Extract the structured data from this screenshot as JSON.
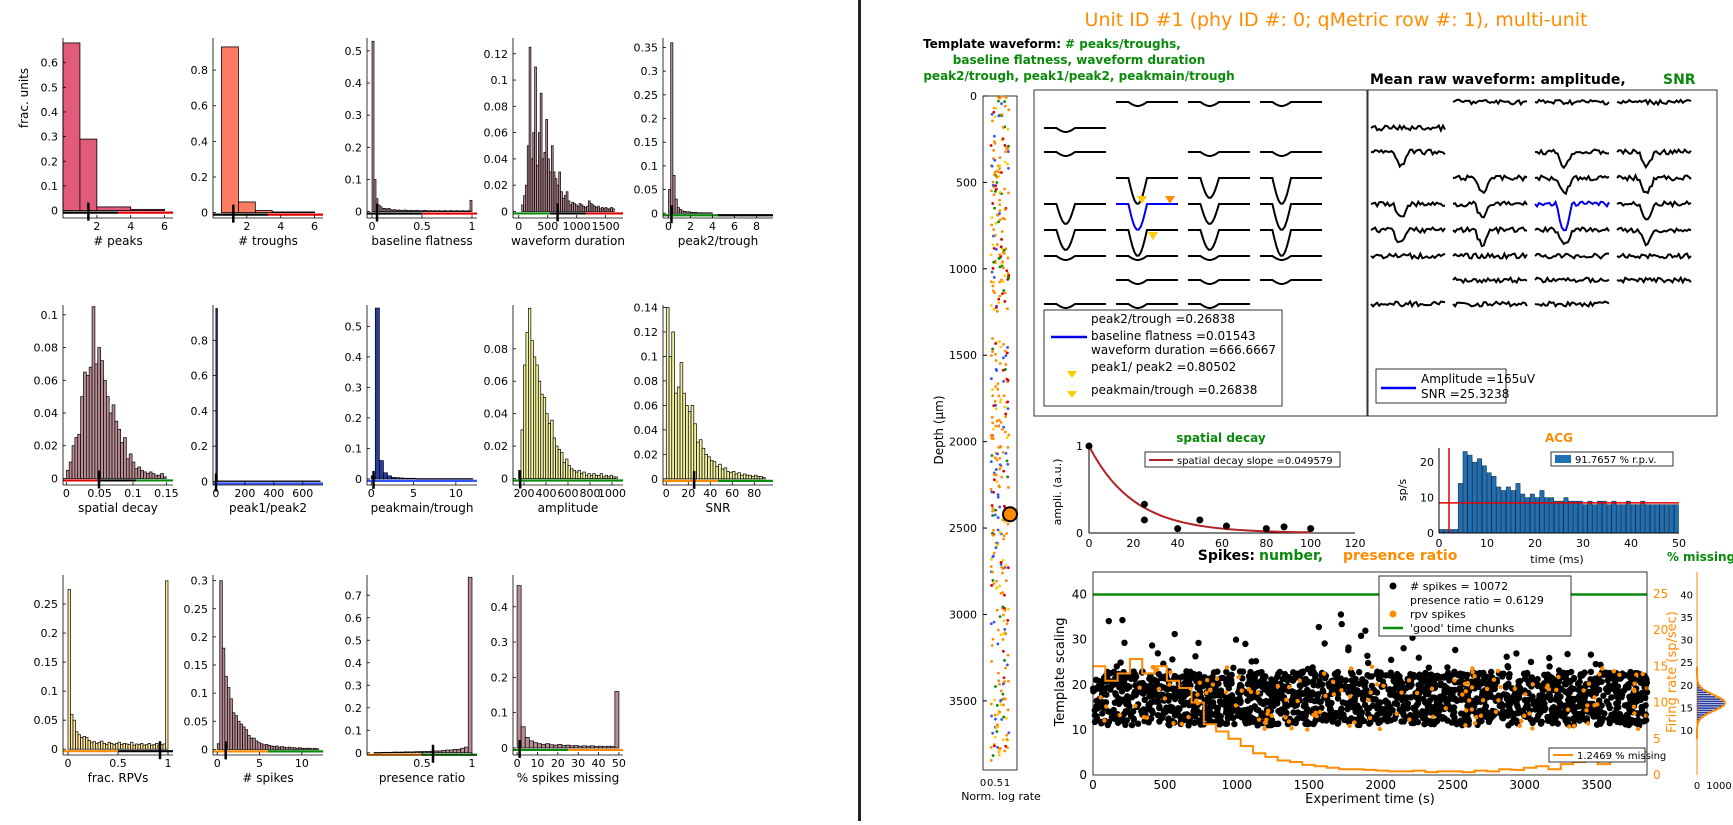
{
  "colors": {
    "orange": "#ff8c00",
    "green": "#0a8a0a",
    "red": "#e00000",
    "blue": "#0000ff",
    "pink": "#e25b7a",
    "salmon": "#ff7b64",
    "mauve": "#b98d93",
    "navy": "#283c9e",
    "yellow": "#f4f4a0",
    "paleyellow": "#ffe7a0",
    "acgblue": "#1f6fb4"
  },
  "histograms": [
    {
      "id": "peaks",
      "xlabel": "# peaks",
      "ylabel": "frac. units",
      "color": "pink",
      "xlim": [
        0,
        6.5
      ],
      "ylim": [
        -0.03,
        0.7
      ],
      "xticks": [
        2,
        4,
        6
      ],
      "yticks": [
        0,
        0.1,
        0.2,
        0.3,
        0.4,
        0.5,
        0.6
      ],
      "bins": [
        [
          0,
          1,
          0.68
        ],
        [
          1,
          2,
          0.29
        ],
        [
          2,
          4,
          0.015
        ],
        [
          4,
          6,
          0.005
        ]
      ],
      "thr": 1.5,
      "line_colors": [
        "black",
        "red"
      ]
    },
    {
      "id": "troughs",
      "xlabel": "# troughs",
      "color": "salmon",
      "xlim": [
        0,
        6.5
      ],
      "ylim": [
        -0.03,
        0.98
      ],
      "xticks": [
        2,
        4,
        6
      ],
      "yticks": [
        0,
        0.2,
        0.4,
        0.6,
        0.8
      ],
      "bins": [
        [
          0.5,
          1.5,
          0.93
        ],
        [
          1.5,
          2.5,
          0.06
        ],
        [
          2.5,
          3.5,
          0.012
        ],
        [
          3.5,
          6,
          0.004
        ]
      ],
      "thr": 1.2,
      "line_colors": [
        "black",
        "red"
      ]
    },
    {
      "id": "baseline",
      "xlabel": "baseline flatness",
      "color": "mauve",
      "xlim": [
        -0.05,
        1.05
      ],
      "ylim": [
        -0.02,
        0.54
      ],
      "xticks": [
        0,
        0.5,
        1
      ],
      "yticks": [
        0,
        0.1,
        0.2,
        0.3,
        0.4,
        0.5
      ],
      "series": [
        0.53,
        0.1,
        0.04,
        0.02,
        0.015,
        0.01,
        0.01,
        0.008,
        0.01,
        0.006,
        0.005,
        0.006,
        0.004,
        0.005,
        0.004,
        0.003,
        0.005,
        0.004,
        0.003,
        0.004,
        0.003,
        0.003,
        0.004,
        0.003,
        0.002,
        0.003,
        0.004,
        0.003,
        0.002,
        0.003,
        0.002,
        0.003,
        0.002,
        0.003,
        0.002,
        0.002,
        0.003,
        0.002,
        0.002,
        0.003,
        0.002,
        0.002,
        0.003,
        0.002,
        0.002,
        0.003,
        0.002,
        0.002,
        0.003,
        0.035
      ],
      "sx": [
        0,
        1
      ],
      "thr": 0.05,
      "line_colors": [
        "black",
        "red"
      ]
    },
    {
      "id": "duration",
      "xlabel": "waveform duration",
      "color": "mauve",
      "xlim": [
        -100,
        1800
      ],
      "ylim": [
        -0.005,
        0.132
      ],
      "xticks": [
        0,
        500,
        1000,
        1500
      ],
      "yticks": [
        0,
        0.02,
        0.04,
        0.06,
        0.08,
        0.1,
        0.12
      ],
      "series": [
        0.005,
        0.012,
        0.02,
        0.05,
        0.125,
        0.04,
        0.06,
        0.11,
        0.035,
        0.06,
        0.09,
        0.04,
        0.045,
        0.07,
        0.04,
        0.03,
        0.05,
        0.03,
        0.025,
        0.02,
        0.03,
        0.015,
        0.01,
        0.012,
        0.015,
        0.008,
        0.005,
        0.007,
        0.006,
        0.005,
        0.004,
        0.006,
        0.005,
        0.004,
        0.003,
        0.004,
        0.008,
        0.006,
        0.005,
        0.004,
        0.003,
        0.004,
        0.002,
        0.003,
        0.002,
        0.003,
        0.002,
        0.002,
        0.003,
        0.002
      ],
      "sx": [
        50,
        1650
      ],
      "thr": 670,
      "line_colors": [
        "green",
        "black",
        "red"
      ]
    },
    {
      "id": "peak2trough",
      "xlabel": "peak2/trough",
      "color": "mauve",
      "xlim": [
        -0.5,
        9.5
      ],
      "ylim": [
        -0.01,
        0.37
      ],
      "xticks": [
        0,
        2,
        4,
        6,
        8
      ],
      "yticks": [
        0,
        0.05,
        0.1,
        0.15,
        0.2,
        0.25,
        0.3,
        0.35
      ],
      "series": [
        0.05,
        0.36,
        0.08,
        0.03,
        0.012,
        0.008,
        0.005,
        0.004,
        0.003,
        0.003,
        0.002,
        0.002,
        0.002,
        0.001,
        0.001,
        0.001,
        0.001,
        0.001,
        0.001,
        0.001
      ],
      "sx": [
        0,
        4
      ],
      "thr": 0.27,
      "line_colors": [
        "green",
        "black"
      ]
    },
    {
      "id": "spatialdecay",
      "xlabel": "spatial decay",
      "color": "mauve",
      "xlim": [
        -0.005,
        0.16
      ],
      "ylim": [
        -0.004,
        0.106
      ],
      "xticks": [
        0,
        0.05,
        0.1,
        0.15
      ],
      "yticks": [
        0,
        0.02,
        0.04,
        0.06,
        0.08,
        0.1
      ],
      "series": [
        0.005,
        0.01,
        0.02,
        0.025,
        0.027,
        0.05,
        0.065,
        0.063,
        0.068,
        0.105,
        0.07,
        0.08,
        0.072,
        0.06,
        0.05,
        0.04,
        0.045,
        0.035,
        0.03,
        0.022,
        0.025,
        0.012,
        0.015,
        0.01,
        0.006,
        0.007,
        0.005,
        0.004,
        0.003,
        0.004,
        0.003,
        0.002,
        0.002,
        0.003,
        0.001
      ],
      "sx": [
        0,
        0.15
      ],
      "thr": 0.049,
      "line_colors": [
        "red",
        "black",
        "green"
      ]
    },
    {
      "id": "peak1peak2",
      "xlabel": "peak1/peak2",
      "color": "navy",
      "xlim": [
        -20,
        740
      ],
      "ylim": [
        -0.02,
        1.0
      ],
      "xticks": [
        0,
        200,
        400,
        600
      ],
      "yticks": [
        0,
        0.2,
        0.4,
        0.6,
        0.8
      ],
      "bins": [
        [
          0,
          10,
          0.98
        ],
        [
          10,
          720,
          0.003
        ]
      ],
      "thr": 1,
      "line_colors": [
        "blue"
      ]
    },
    {
      "id": "peakmain",
      "xlabel": "peakmain/trough",
      "color": "navy",
      "xlim": [
        -0.5,
        12.5
      ],
      "ylim": [
        -0.02,
        0.57
      ],
      "xticks": [
        0,
        5,
        10
      ],
      "yticks": [
        0,
        0.1,
        0.2,
        0.3,
        0.4,
        0.5
      ],
      "series": [
        0.01,
        0.56,
        0.06,
        0.02,
        0.01,
        0.005,
        0.004,
        0.003,
        0.002,
        0.002,
        0.002,
        0.001,
        0.001,
        0.001,
        0.001,
        0.001,
        0.001,
        0.001,
        0.001,
        0.001,
        0.001,
        0.001,
        0.001,
        0.001,
        0.001
      ],
      "sx": [
        0,
        12
      ],
      "thr": 0.27,
      "line_colors": [
        "blue"
      ]
    },
    {
      "id": "amplitude",
      "xlabel": "amplitude",
      "color": "yellow",
      "xlim": [
        100,
        1100
      ],
      "ylim": [
        -0.004,
        0.107
      ],
      "xticks": [
        200,
        400,
        600,
        800,
        1000
      ],
      "yticks": [
        0,
        0.02,
        0.04,
        0.06,
        0.08
      ],
      "series": [
        0.005,
        0.03,
        0.07,
        0.09,
        0.105,
        0.085,
        0.075,
        0.07,
        0.06,
        0.052,
        0.05,
        0.04,
        0.034,
        0.036,
        0.025,
        0.02,
        0.018,
        0.016,
        0.01,
        0.012,
        0.008,
        0.006,
        0.005,
        0.004,
        0.005,
        0.003,
        0.004,
        0.002,
        0.003,
        0.002,
        0.003,
        0.002,
        0.002,
        0.003,
        0.001,
        0.002,
        0.001,
        0.002,
        0.001,
        0.001
      ],
      "sx": [
        150,
        1050
      ],
      "thr": 165,
      "line_colors": [
        "green"
      ]
    },
    {
      "id": "snr",
      "xlabel": "SNR",
      "color": "yellow",
      "xlim": [
        -3,
        97
      ],
      "ylim": [
        -0.005,
        0.142
      ],
      "xticks": [
        0,
        20,
        40,
        60,
        80
      ],
      "yticks": [
        0,
        0.02,
        0.04,
        0.06,
        0.08,
        0.1,
        0.12,
        0.14
      ],
      "series": [
        0.14,
        0.1,
        0.12,
        0.07,
        0.075,
        0.095,
        0.07,
        0.06,
        0.055,
        0.06,
        0.045,
        0.03,
        0.032,
        0.025,
        0.02,
        0.018,
        0.015,
        0.014,
        0.01,
        0.012,
        0.008,
        0.009,
        0.006,
        0.005,
        0.006,
        0.004,
        0.005,
        0.003,
        0.004,
        0.003,
        0.003,
        0.002,
        0.003,
        0.002,
        0.002,
        0.001
      ],
      "sx": [
        0,
        90
      ],
      "thr": 25.3,
      "line_colors": [
        "orange",
        "green"
      ]
    },
    {
      "id": "rpv",
      "xlabel": "frac. RPVs",
      "color": "paleyellow",
      "xlim": [
        -0.05,
        1.05
      ],
      "ylim": [
        -0.01,
        0.3
      ],
      "xticks": [
        0,
        0.5,
        1
      ],
      "yticks": [
        0,
        0.05,
        0.1,
        0.15,
        0.2,
        0.25
      ],
      "series": [
        0.275,
        0.06,
        0.05,
        0.03,
        0.025,
        0.02,
        0.022,
        0.02,
        0.015,
        0.012,
        0.013,
        0.01,
        0.012,
        0.014,
        0.01,
        0.008,
        0.012,
        0.01,
        0.008,
        0.01,
        0.012,
        0.008,
        0.01,
        0.009,
        0.008,
        0.012,
        0.007,
        0.009,
        0.008,
        0.01,
        0.007,
        0.008,
        0.01,
        0.007,
        0.008,
        0.01,
        0.006,
        0.008,
        0.009,
        0.29
      ],
      "sx": [
        0,
        1
      ],
      "thr": 0.92,
      "line_colors": [
        "orange",
        "black"
      ]
    },
    {
      "id": "nspikes",
      "xlabel": "# spikes",
      "color": "mauve",
      "xlim": [
        -0.5,
        12.5
      ],
      "ylim": [
        -0.01,
        0.31
      ],
      "xticks": [
        0,
        5,
        10
      ],
      "yticks": [
        0,
        0.05,
        0.1,
        0.15,
        0.2,
        0.25,
        0.3
      ],
      "series": [
        0.01,
        0.3,
        0.18,
        0.13,
        0.11,
        0.09,
        0.065,
        0.06,
        0.05,
        0.045,
        0.04,
        0.035,
        0.025,
        0.02,
        0.02,
        0.015,
        0.012,
        0.01,
        0.008,
        0.009,
        0.007,
        0.006,
        0.005,
        0.006,
        0.004,
        0.005,
        0.004,
        0.003,
        0.004,
        0.003,
        0.003,
        0.002,
        0.003,
        0.002,
        0.002,
        0.002,
        0.002,
        0.001,
        0.002,
        0.001
      ],
      "sx": [
        0,
        12
      ],
      "thr": 1.0,
      "line_colors": [
        "orange",
        "green"
      ]
    },
    {
      "id": "presence",
      "xlabel": "presence ratio",
      "color": "mauve",
      "xlim": [
        -0.05,
        1.05
      ],
      "ylim": [
        -0.01,
        0.79
      ],
      "xticks": [
        0.5,
        1
      ],
      "yticks": [
        0,
        0.1,
        0.2,
        0.3,
        0.4,
        0.5,
        0.6,
        0.7
      ],
      "series": [
        0.001,
        0.001,
        0.002,
        0.002,
        0.002,
        0.003,
        0.003,
        0.003,
        0.004,
        0.004,
        0.004,
        0.005,
        0.005,
        0.006,
        0.006,
        0.007,
        0.008,
        0.008,
        0.01,
        0.012,
        0.012,
        0.015,
        0.015,
        0.02,
        0.025,
        0.78
      ],
      "sx": [
        0.02,
        1.0
      ],
      "thr": 0.61,
      "line_colors": [
        "orange",
        "green"
      ]
    },
    {
      "id": "missing",
      "xlabel": "% spikes missing",
      "color": "mauve",
      "xlim": [
        -2,
        52
      ],
      "ylim": [
        -0.02,
        0.49
      ],
      "xticks": [
        0,
        10,
        20,
        30,
        40,
        50
      ],
      "yticks": [
        0,
        0.1,
        0.2,
        0.3,
        0.4
      ],
      "series": [
        0.46,
        0.06,
        0.03,
        0.02,
        0.015,
        0.012,
        0.01,
        0.012,
        0.009,
        0.008,
        0.01,
        0.007,
        0.008,
        0.006,
        0.007,
        0.005,
        0.006,
        0.005,
        0.006,
        0.004,
        0.005,
        0.004,
        0.005,
        0.004,
        0.16
      ],
      "sx": [
        0,
        50
      ],
      "thr": 1.25,
      "line_colors": [
        "green",
        "orange"
      ]
    }
  ],
  "right": {
    "title": "Unit ID #1 (phy ID #: 0; qMetric row #: 1), multi-unit",
    "template_title_black": "Template waveform:",
    "template_title_green1": "# peaks/troughs,",
    "template_title_green2": "baseline flatness, waveform duration",
    "template_title_green3": "peak2/trough,  peak1/peak2, peakmain/trough",
    "mean_title_black": "Mean raw waveform:  amplitude,",
    "mean_title_green": "SNR",
    "template_legend": [
      "peak2/trough =0.26838",
      "baseline flatness =0.01543",
      "waveform duration =666.6667",
      "peak1/ peak2 =0.80502",
      "peakmain/trough =0.26838"
    ],
    "mean_legend": [
      "Amplitude =165uV",
      "SNR =25.3238"
    ],
    "depth_label": "Depth (μm)",
    "depth_ticks": [
      0,
      500,
      1000,
      1500,
      2000,
      2500,
      3000,
      3500
    ],
    "normlog_label": "Norm. log rate",
    "normlog_ticks": [
      "0",
      "0.5",
      "1"
    ],
    "spatial": {
      "title": "spatial decay",
      "ylabel": "ampli. (a.u.)",
      "legend": "spatial decay slope =0.049579",
      "xticks": [
        0,
        20,
        40,
        60,
        80,
        100,
        120
      ],
      "yticks": [
        0,
        1
      ],
      "points": [
        [
          0,
          1
        ],
        [
          25,
          0.33
        ],
        [
          25,
          0.15
        ],
        [
          40,
          0.05
        ],
        [
          50,
          0.15
        ],
        [
          62,
          0.08
        ],
        [
          80,
          0.05
        ],
        [
          88,
          0.07
        ],
        [
          100,
          0.05
        ]
      ]
    },
    "acg": {
      "title": "ACG",
      "ylabel": "sp/s",
      "xlabel": "time (ms)",
      "legend": "91.7657 % r.p.v.",
      "xticks": [
        0,
        10,
        20,
        30,
        40,
        50
      ],
      "yticks": [
        0,
        10,
        20
      ],
      "bars": [
        1,
        1,
        1,
        1,
        14,
        23,
        22,
        20,
        21,
        19,
        17,
        16,
        13,
        12,
        13,
        12,
        14,
        11,
        10,
        11,
        10,
        12,
        10,
        10,
        9,
        9,
        10,
        9,
        9,
        9,
        8,
        9,
        8,
        9,
        9,
        8,
        9,
        8,
        8,
        9,
        8,
        8,
        9,
        8,
        8,
        8,
        8,
        8,
        8,
        8
      ]
    },
    "spikes": {
      "title_black": "Spikes:",
      "title_green": "number,",
      "title_orange": "presence ratio",
      "ylabel": "Template scaling",
      "ylabel_right": "Firing rate (sp/sec)",
      "xlabel": "Experiment time (s)",
      "xticks": [
        0,
        500,
        1000,
        1500,
        2000,
        2500,
        3000,
        3500
      ],
      "yticks": [
        0,
        10,
        20,
        30,
        40
      ],
      "yticks_right": [
        0,
        5,
        10,
        15,
        20,
        25
      ],
      "legend": [
        "# spikes = 10072",
        "presence ratio = 0.6129",
        "rpv spikes",
        "'good' time chunks"
      ],
      "missing_legend": "1.2469 % missing",
      "pct_missing_title": "% missing",
      "pct_missing_yticks": [
        10,
        15,
        20,
        25,
        30,
        35,
        40
      ],
      "pct_missing_xticks": [
        "0",
        "1000"
      ],
      "good_level": 40,
      "firing_rate": [
        15,
        13,
        14,
        16,
        14,
        15,
        13,
        12,
        10,
        7,
        6,
        5,
        4,
        3,
        2.5,
        2,
        1.8,
        1.4,
        1.2,
        1,
        0.8,
        0.8,
        0.7,
        0.6,
        0.5,
        0.5,
        0.6,
        0.4,
        0.5,
        0.5,
        0.4,
        0.6,
        0.5,
        0.8,
        0.7,
        1,
        1.2,
        0.8,
        1.5,
        1.8,
        2,
        1.5,
        2.5,
        3,
        3.2
      ]
    }
  }
}
